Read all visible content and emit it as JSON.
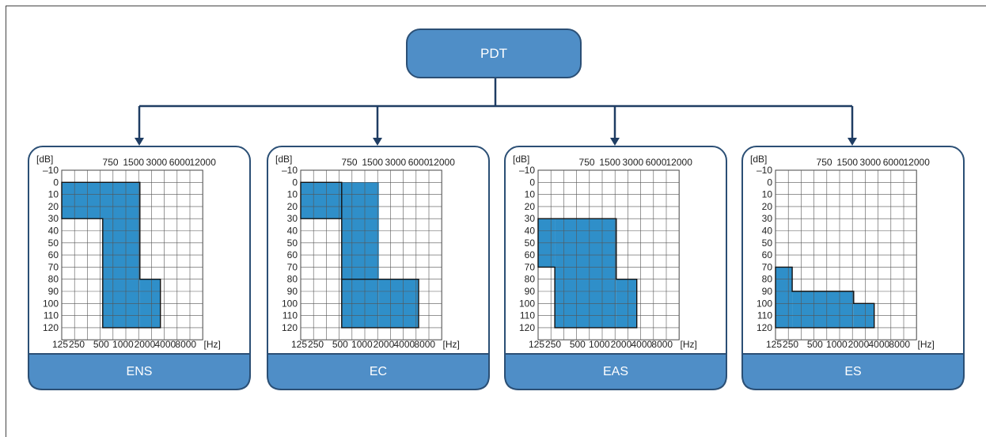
{
  "root": {
    "label": "PDT"
  },
  "y_axis": {
    "unit": "[dB]",
    "ticks": [
      "-10",
      "0",
      "10",
      "20",
      "30",
      "40",
      "50",
      "60",
      "70",
      "80",
      "90",
      "100",
      "110",
      "120"
    ]
  },
  "x_axis": {
    "unit": "[Hz]",
    "top_ticks": [
      "750",
      "1500",
      "3000",
      "6000",
      "12000"
    ],
    "bottom_ticks": [
      "125",
      "250",
      "500",
      "1000",
      "2000",
      "4000",
      "8000"
    ]
  },
  "colors": {
    "fill": "#2f8fc9",
    "node": "#4f8ec7",
    "node_border": "#2b4f75",
    "line": "#1f3d63"
  },
  "panels": [
    {
      "label": "ENS"
    },
    {
      "label": "EC"
    },
    {
      "label": "EAS"
    },
    {
      "label": "ES"
    }
  ]
}
